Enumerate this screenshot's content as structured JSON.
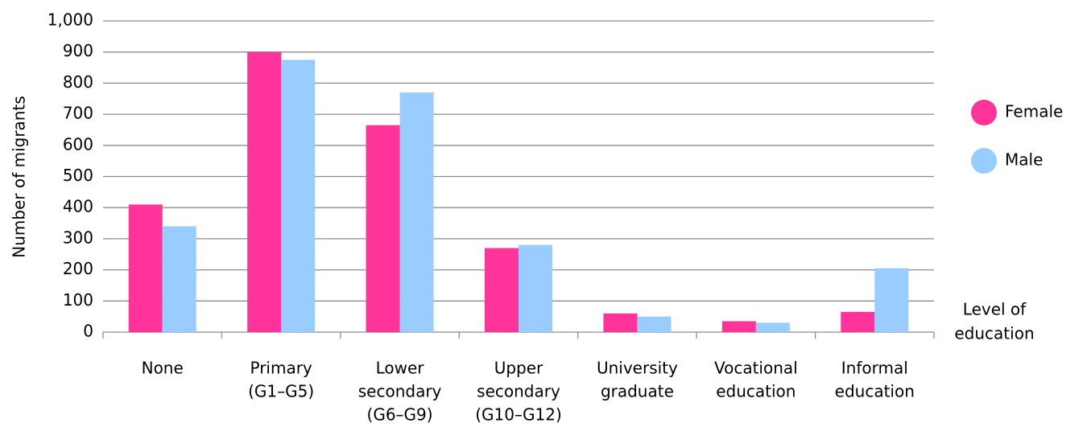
{
  "chart_data": {
    "type": "bar",
    "y_label": "Number of migrants",
    "x_label": [
      "Level of",
      "education"
    ],
    "categories": [
      [
        "None"
      ],
      [
        "Primary",
        "(G1–G5)"
      ],
      [
        "Lower",
        "secondary",
        "(G6–G9)"
      ],
      [
        "Upper",
        "secondary",
        "(G10–G12)"
      ],
      [
        "University",
        "graduate"
      ],
      [
        "Vocational",
        "education"
      ],
      [
        "Informal",
        "education"
      ]
    ],
    "series": [
      {
        "name": "Female",
        "color": "#ff3399",
        "values": [
          410,
          900,
          665,
          270,
          60,
          35,
          65
        ]
      },
      {
        "name": "Male",
        "color": "#99ccff",
        "values": [
          340,
          875,
          770,
          280,
          50,
          30,
          205
        ]
      }
    ],
    "ylim": [
      0,
      1000
    ],
    "yticks": [
      0,
      100,
      200,
      300,
      400,
      500,
      600,
      700,
      800,
      900,
      {
        "value": 1000,
        "label": "1,000"
      }
    ],
    "grid": true,
    "legend": "right"
  }
}
